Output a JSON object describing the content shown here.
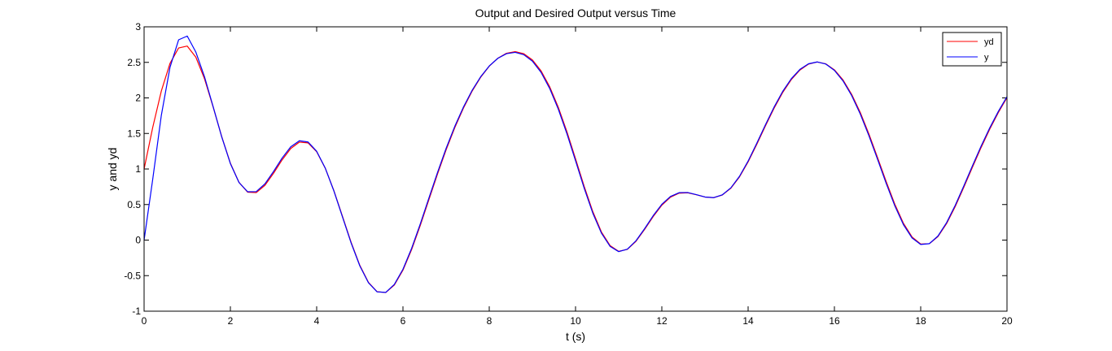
{
  "chart_data": {
    "type": "line",
    "title": "Output and Desired Output versus Time",
    "xlabel": "t (s)",
    "ylabel": "y and yd",
    "xlim": [
      0,
      20
    ],
    "ylim": [
      -1,
      3
    ],
    "xticks": [
      0,
      2,
      4,
      6,
      8,
      10,
      12,
      14,
      16,
      18,
      20
    ],
    "yticks": [
      -1,
      -0.5,
      0,
      0.5,
      1,
      1.5,
      2,
      2.5,
      3
    ],
    "xtick_labels": [
      "0",
      "2",
      "4",
      "6",
      "8",
      "10",
      "12",
      "14",
      "16",
      "18",
      "20"
    ],
    "ytick_labels": [
      "-1",
      "-0.5",
      "0",
      "0.5",
      "1",
      "1.5",
      "2",
      "2.5",
      "3"
    ],
    "grid": false,
    "legend_position": "top-right",
    "series": [
      {
        "name": "yd",
        "color": "#ff0000",
        "x": [
          0,
          0.2,
          0.4,
          0.6,
          0.8,
          1.0,
          1.2,
          1.4,
          1.6,
          1.8,
          2.0,
          2.2,
          2.4,
          2.6,
          2.8,
          3.0,
          3.2,
          3.4,
          3.6,
          3.8,
          4.0,
          4.2,
          4.4,
          4.6,
          4.8,
          5.0,
          5.2,
          5.4,
          5.6,
          5.8,
          6.0,
          6.2,
          6.4,
          6.6,
          6.8,
          7.0,
          7.2,
          7.4,
          7.6,
          7.8,
          8.0,
          8.2,
          8.4,
          8.6,
          8.8,
          9.0,
          9.2,
          9.4,
          9.6,
          9.8,
          10.0,
          10.2,
          10.4,
          10.6,
          10.8,
          11.0,
          11.2,
          11.4,
          11.6,
          11.8,
          12.0,
          12.2,
          12.4,
          12.6,
          12.8,
          13.0,
          13.2,
          13.4,
          13.6,
          13.8,
          14.0,
          14.2,
          14.4,
          14.6,
          14.8,
          15.0,
          15.2,
          15.4,
          15.6,
          15.8,
          16.0,
          16.2,
          16.4,
          16.6,
          16.8,
          17.0,
          17.2,
          17.4,
          17.6,
          17.8,
          18.0,
          18.2,
          18.4,
          18.6,
          18.8,
          19.0,
          19.2,
          19.4,
          19.6,
          19.8,
          20.0
        ],
        "values": [
          1.0,
          1.584,
          2.098,
          2.485,
          2.702,
          2.729,
          2.573,
          2.269,
          1.873,
          1.454,
          1.082,
          0.812,
          0.674,
          0.668,
          0.77,
          0.94,
          1.129,
          1.289,
          1.378,
          1.367,
          1.243,
          1.011,
          0.694,
          0.331,
          -0.034,
          -0.355,
          -0.594,
          -0.726,
          -0.738,
          -0.632,
          -0.423,
          -0.135,
          0.204,
          0.567,
          0.928,
          1.27,
          1.58,
          1.854,
          2.092,
          2.29,
          2.446,
          2.559,
          2.628,
          2.651,
          2.622,
          2.534,
          2.381,
          2.158,
          1.869,
          1.525,
          1.144,
          0.757,
          0.401,
          0.114,
          -0.077,
          -0.158,
          -0.131,
          -0.018,
          0.149,
          0.331,
          0.491,
          0.604,
          0.66,
          0.665,
          0.638,
          0.606,
          0.597,
          0.634,
          0.73,
          0.889,
          1.1,
          1.346,
          1.604,
          1.853,
          2.075,
          2.257,
          2.392,
          2.475,
          2.505,
          2.479,
          2.395,
          2.252,
          2.05,
          1.794,
          1.492,
          1.161,
          0.823,
          0.505,
          0.236,
          0.043,
          -0.055,
          -0.051,
          0.05,
          0.232,
          0.472,
          0.744,
          1.026,
          1.302,
          1.56,
          1.795,
          2.004
        ]
      },
      {
        "name": "y",
        "color": "#0000ff",
        "x": [
          0,
          0.2,
          0.4,
          0.6,
          0.8,
          1.0,
          1.2,
          1.4,
          1.6,
          1.8,
          2.0,
          2.2,
          2.4,
          2.6,
          2.8,
          3.0,
          3.2,
          3.4,
          3.6,
          3.8,
          4.0,
          4.2,
          4.4,
          4.6,
          4.8,
          5.0,
          5.2,
          5.4,
          5.6,
          5.8,
          6.0,
          6.2,
          6.4,
          6.6,
          6.8,
          7.0,
          7.2,
          7.4,
          7.6,
          7.8,
          8.0,
          8.2,
          8.4,
          8.6,
          8.8,
          9.0,
          9.2,
          9.4,
          9.6,
          9.8,
          10.0,
          10.2,
          10.4,
          10.6,
          10.8,
          11.0,
          11.2,
          11.4,
          11.6,
          11.8,
          12.0,
          12.2,
          12.4,
          12.6,
          12.8,
          13.0,
          13.2,
          13.4,
          13.6,
          13.8,
          14.0,
          14.2,
          14.4,
          14.6,
          14.8,
          15.0,
          15.2,
          15.4,
          15.6,
          15.8,
          16.0,
          16.2,
          16.4,
          16.6,
          16.8,
          17.0,
          17.2,
          17.4,
          17.6,
          17.8,
          18.0,
          18.2,
          18.4,
          18.6,
          18.8,
          19.0,
          19.2,
          19.4,
          19.6,
          19.8,
          20.0
        ],
        "values": [
          0.0,
          0.855,
          1.756,
          2.429,
          2.817,
          2.87,
          2.644,
          2.298,
          1.878,
          1.45,
          1.076,
          0.81,
          0.68,
          0.682,
          0.791,
          0.965,
          1.155,
          1.313,
          1.397,
          1.38,
          1.249,
          1.011,
          0.69,
          0.322,
          -0.043,
          -0.363,
          -0.6,
          -0.728,
          -0.736,
          -0.624,
          -0.41,
          -0.117,
          0.225,
          0.589,
          0.949,
          1.29,
          1.598,
          1.869,
          2.103,
          2.297,
          2.449,
          2.557,
          2.622,
          2.641,
          2.608,
          2.517,
          2.36,
          2.134,
          1.843,
          1.497,
          1.116,
          0.731,
          0.379,
          0.098,
          -0.088,
          -0.162,
          -0.128,
          -0.01,
          0.16,
          0.344,
          0.503,
          0.613,
          0.667,
          0.669,
          0.639,
          0.606,
          0.597,
          0.636,
          0.735,
          0.897,
          1.112,
          1.361,
          1.62,
          1.869,
          2.09,
          2.269,
          2.401,
          2.48,
          2.506,
          2.476,
          2.387,
          2.239,
          2.033,
          1.773,
          1.468,
          1.136,
          0.798,
          0.482,
          0.217,
          0.03,
          -0.061,
          -0.05,
          0.057,
          0.245,
          0.489,
          0.763,
          1.046,
          1.322,
          1.578,
          1.811,
          2.017
        ]
      }
    ]
  }
}
